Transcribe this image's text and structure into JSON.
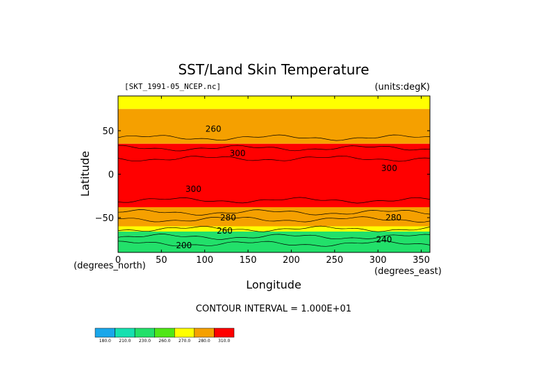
{
  "chart_data": {
    "type": "heatmap",
    "title": "SST/Land Skin Temperature",
    "source_label": "[SKT_1991-05_NCEP.nc]",
    "units_label": "(units:degK)",
    "xlabel": "Longitude",
    "ylabel": "Latitude",
    "x_unit_label": "(degrees_east)",
    "y_unit_label": "(degrees_north)",
    "contour_interval_text": "CONTOUR INTERVAL = 1.000E+01",
    "x_ticks": [
      0,
      50,
      100,
      150,
      200,
      250,
      300,
      350
    ],
    "y_ticks": [
      50,
      0,
      -50
    ],
    "xlim": [
      0,
      360
    ],
    "ylim": [
      -90,
      90
    ],
    "colorbar": {
      "levels": [
        "180.0",
        "210.0",
        "230.0",
        "260.0",
        "270.0",
        "280.0",
        "310.0"
      ],
      "colors": [
        "#1aa7ea",
        "#16e0b0",
        "#22e06a",
        "#4fe616",
        "#ffff00",
        "#f5a000",
        "#ff0000"
      ]
    },
    "bands": [
      {
        "lat_from": 90,
        "lat_to": 75,
        "color": "#ffff00"
      },
      {
        "lat_from": 75,
        "lat_to": 35,
        "color": "#f5a000"
      },
      {
        "lat_from": 35,
        "lat_to": -38,
        "color": "#ff0000"
      },
      {
        "lat_from": -38,
        "lat_to": -60,
        "color": "#f5a000"
      },
      {
        "lat_from": -60,
        "lat_to": -66,
        "color": "#ffff00"
      },
      {
        "lat_from": -66,
        "lat_to": -90,
        "color": "#22e06a"
      }
    ],
    "contour_labels": [
      {
        "text": "260",
        "lon": 110,
        "lat": 52
      },
      {
        "text": "300",
        "lon": 138,
        "lat": 24
      },
      {
        "text": "300",
        "lon": 313,
        "lat": 7
      },
      {
        "text": "300",
        "lon": 87,
        "lat": -17
      },
      {
        "text": "280",
        "lon": 127,
        "lat": -50
      },
      {
        "text": "280",
        "lon": 318,
        "lat": -50
      },
      {
        "text": "260",
        "lon": 123,
        "lat": -65
      },
      {
        "text": "240",
        "lon": 307,
        "lat": -75
      },
      {
        "text": "200",
        "lon": 76,
        "lat": -82
      }
    ]
  }
}
